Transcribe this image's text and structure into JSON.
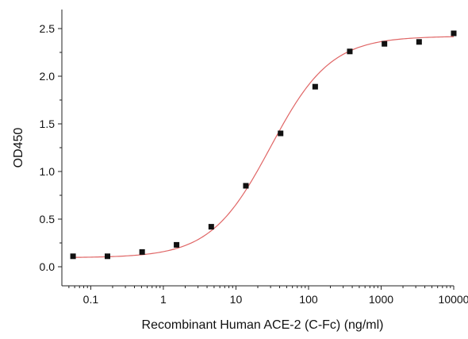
{
  "chart_data": {
    "type": "scatter",
    "xlabel": "Recombinant Human ACE-2 (C-Fc) (ng/ml)",
    "ylabel": "OD450",
    "xscale": "log",
    "xlim": [
      0.04,
      10000
    ],
    "ylim": [
      -0.2,
      2.7
    ],
    "xticks": [
      0.1,
      1,
      10,
      100,
      1000,
      10000
    ],
    "xtick_labels": [
      "0.1",
      "1",
      "10",
      "100",
      "1000",
      "10000"
    ],
    "yticks": [
      0.0,
      0.5,
      1.0,
      1.5,
      2.0,
      2.5
    ],
    "ytick_labels": [
      "0.0",
      "0.5",
      "1.0",
      "1.5",
      "2.0",
      "2.5"
    ],
    "grid": false,
    "series": [
      {
        "marker": "square",
        "color": "#111111",
        "x": [
          0.057,
          0.17,
          0.51,
          1.52,
          4.57,
          13.7,
          41.2,
          123.5,
          370,
          1111,
          3333,
          10000
        ],
        "y": [
          0.11,
          0.11,
          0.155,
          0.23,
          0.42,
          0.85,
          1.4,
          1.89,
          2.26,
          2.34,
          2.36,
          2.45
        ]
      }
    ],
    "fit_curve": {
      "model": "4PL",
      "color": "#e06666",
      "bottom": 0.095,
      "top": 2.42,
      "ec50": 30,
      "hill": 1.05
    }
  }
}
